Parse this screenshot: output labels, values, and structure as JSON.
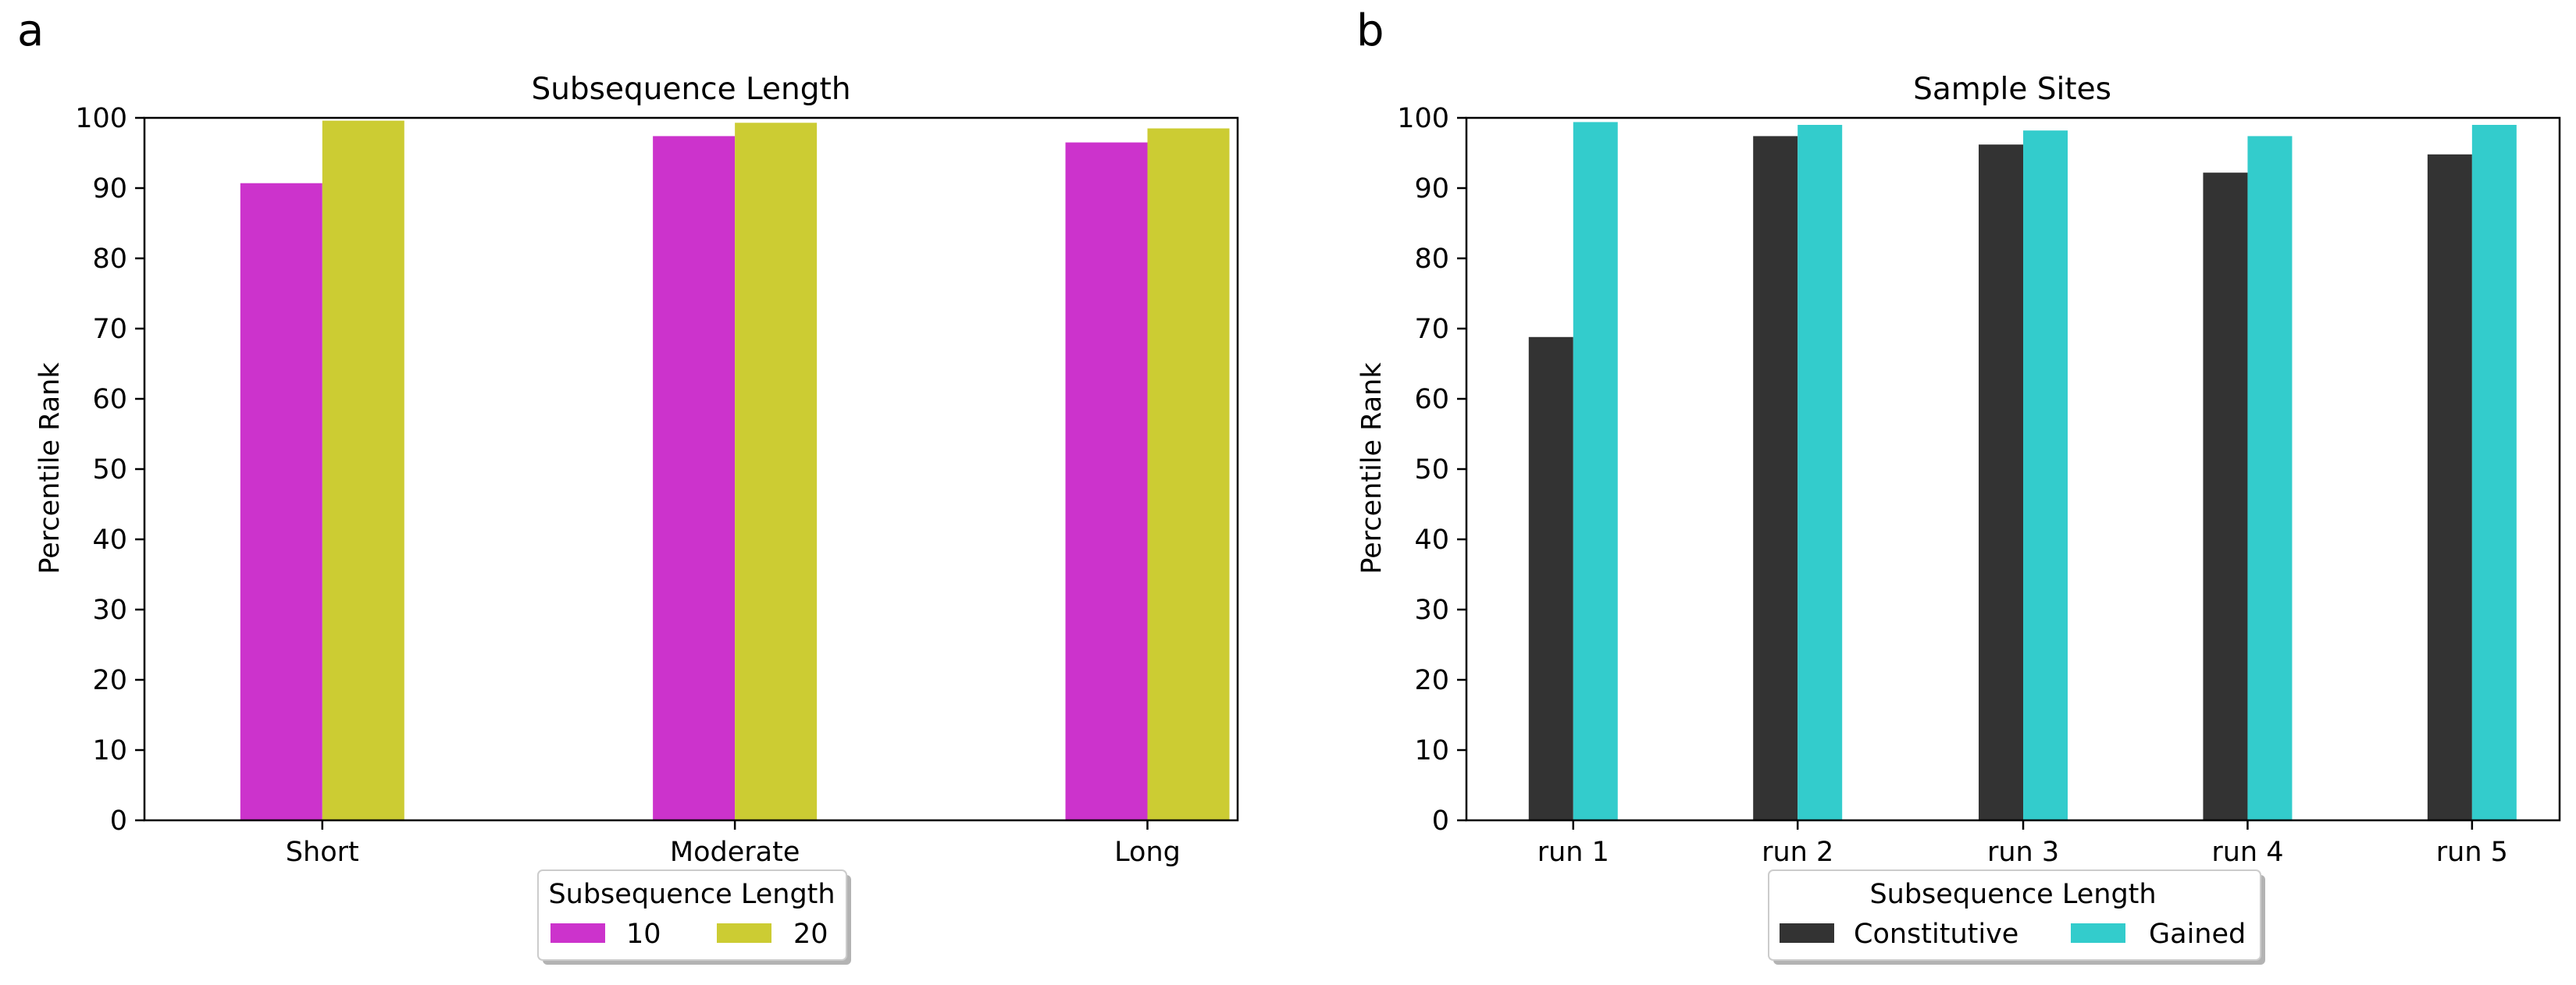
{
  "panels": [
    {
      "letter": "a",
      "chart_data": {
        "type": "bar",
        "title": "Subsequence Length",
        "xlabel": "",
        "ylabel": "Percentile Rank",
        "ylim": [
          0,
          100
        ],
        "yticks": [
          0,
          10,
          20,
          30,
          40,
          50,
          60,
          70,
          80,
          90,
          100
        ],
        "categories": [
          "Short",
          "Moderate",
          "Long"
        ],
        "series": [
          {
            "name": "10",
            "color": "#cc33cc",
            "values": [
              90.7,
              97.4,
              96.5
            ]
          },
          {
            "name": "20",
            "color": "#cccc33",
            "values": [
              99.6,
              99.3,
              98.5
            ]
          }
        ],
        "legend": {
          "title": "Subsequence Length",
          "placement": "lower-center"
        }
      }
    },
    {
      "letter": "b",
      "chart_data": {
        "type": "bar",
        "title": "Sample Sites",
        "xlabel": "",
        "ylabel": "Percentile Rank",
        "ylim": [
          0,
          100
        ],
        "yticks": [
          0,
          10,
          20,
          30,
          40,
          50,
          60,
          70,
          80,
          90,
          100
        ],
        "categories": [
          "run 1",
          "run 2",
          "run 3",
          "run 4",
          "run 5"
        ],
        "series": [
          {
            "name": "Constitutive",
            "color": "#333333",
            "values": [
              68.8,
              97.4,
              96.2,
              92.2,
              94.8
            ]
          },
          {
            "name": "Gained",
            "color": "#33cccc",
            "values": [
              99.4,
              99.0,
              98.2,
              97.4,
              99.0
            ]
          }
        ],
        "legend": {
          "title": "Subsequence Length",
          "placement": "lower-center"
        }
      }
    }
  ]
}
